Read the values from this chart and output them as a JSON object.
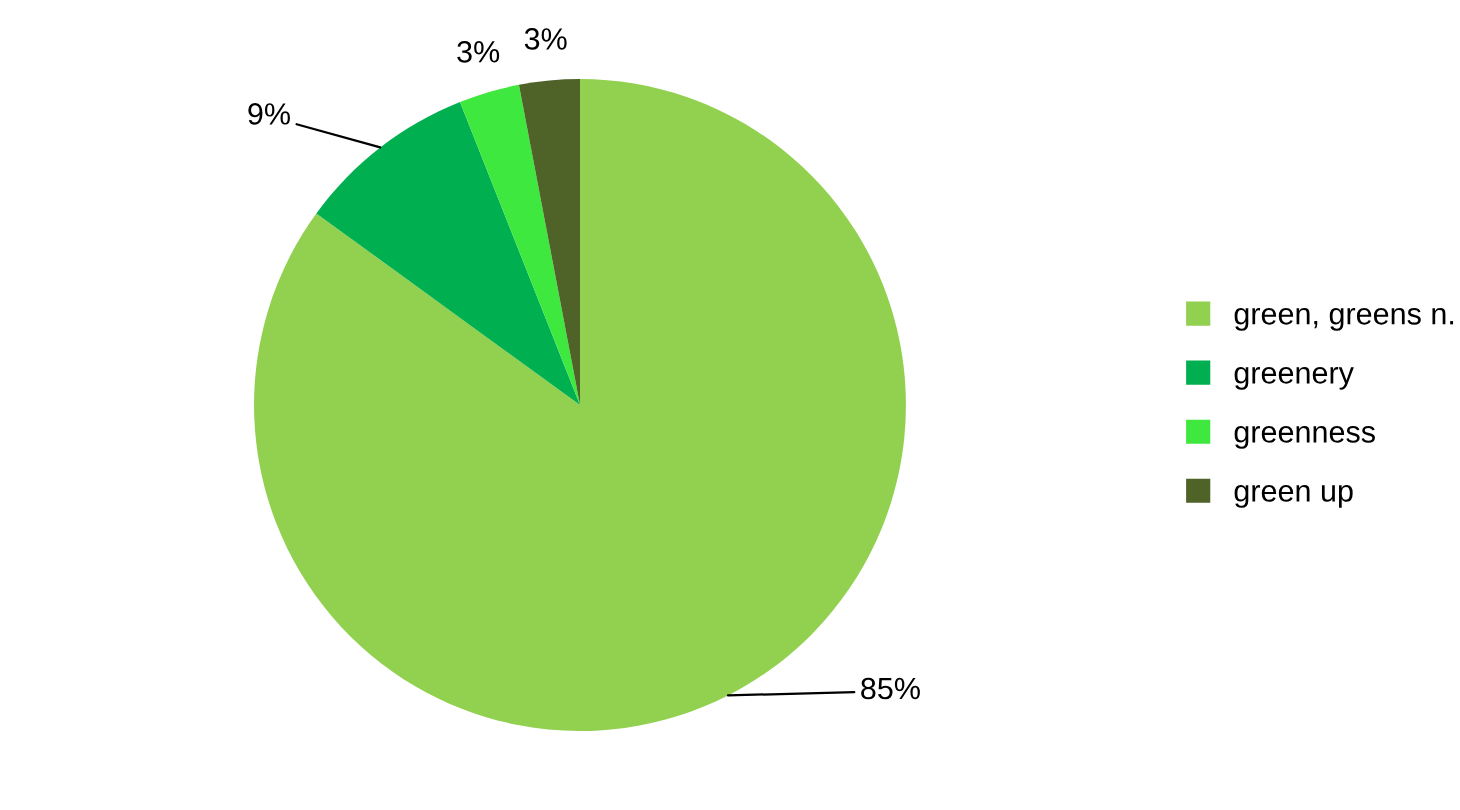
{
  "chart_data": {
    "type": "pie",
    "categories": [
      "green, greens n.",
      "greenery",
      "greenness",
      "green up"
    ],
    "values": [
      85,
      9,
      3,
      3
    ],
    "colors": [
      "#92d050",
      "#00b050",
      "#3ee83e",
      "#4f6228"
    ],
    "value_labels": [
      "85%",
      "9%",
      "3%",
      "3%"
    ],
    "legend": "right"
  }
}
